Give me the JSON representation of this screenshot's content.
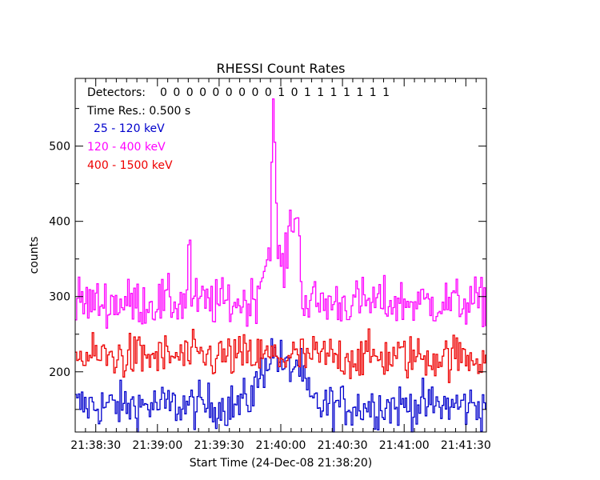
{
  "chart_data": {
    "type": "line",
    "title": "RHESSI Count Rates",
    "xlabel": "Start Time (24-Dec-08 21:38:20)",
    "ylabel": "counts",
    "x_tick_labels": [
      "21:38:30",
      "21:39:00",
      "21:39:30",
      "21:40:00",
      "21:40:30",
      "21:41:00",
      "21:41:30"
    ],
    "x_tick_seconds_after_start": [
      10,
      40,
      70,
      100,
      130,
      160,
      190
    ],
    "xlim_seconds_after_start": [
      0,
      200
    ],
    "y_ticks": [
      200,
      300,
      400,
      500
    ],
    "ylim": [
      120,
      590
    ],
    "time_resolution_s": 0.5,
    "annotations": {
      "detectors_label": "Detectors:",
      "detectors_flags": "0 0 0 0 0 0 0 0 0 1 0 1 1 1 1 1 1 1",
      "time_res": "Time Res.: 0.500 s"
    },
    "series": [
      {
        "name": "25 - 120 keV",
        "color": "#0000cc",
        "baseline": 155,
        "noise": 15,
        "peaks": [
          {
            "t": 96,
            "height": 70,
            "width": 6
          },
          {
            "t": 108,
            "height": 45,
            "width": 3
          }
        ]
      },
      {
        "name": "120 - 400 keV",
        "color": "#ff00ff",
        "baseline": 292,
        "noise": 16,
        "peaks": [
          {
            "t": 55,
            "height": 90,
            "width": 0.6
          },
          {
            "t": 93,
            "height": 55,
            "width": 3
          },
          {
            "t": 96,
            "height": 190,
            "width": 0.8
          },
          {
            "t": 98,
            "height": 60,
            "width": 2
          },
          {
            "t": 105,
            "height": 110,
            "width": 2.2
          },
          {
            "t": 108,
            "height": 60,
            "width": 1.2
          }
        ]
      },
      {
        "name": "400 - 1500 keV",
        "color": "#ee0000",
        "baseline": 220,
        "noise": 15,
        "peaks": []
      }
    ]
  }
}
